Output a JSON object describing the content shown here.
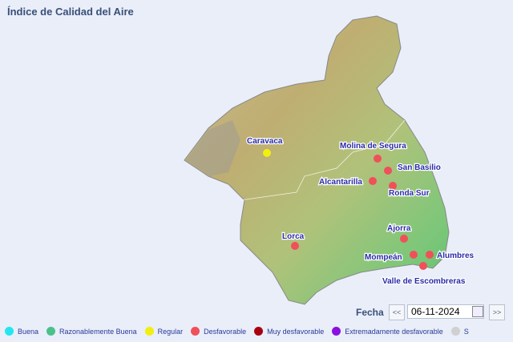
{
  "title": "Índice de Calidad del Aire",
  "date": {
    "label": "Fecha",
    "prev": "<<",
    "next": ">>",
    "value": "06-11-2024"
  },
  "stations": [
    {
      "name": "Caravaca",
      "level": "Regular"
    },
    {
      "name": "Molina de Segura",
      "level": "Desfavorable"
    },
    {
      "name": "San Basilio",
      "level": "Desfavorable"
    },
    {
      "name": "Alcantarilla",
      "level": "Desfavorable"
    },
    {
      "name": "Ronda Sur",
      "level": "Desfavorable"
    },
    {
      "name": "Ajorra",
      "level": "Desfavorable"
    },
    {
      "name": "Lorca",
      "level": "Desfavorable"
    },
    {
      "name": "Mompeán",
      "level": "Desfavorable"
    },
    {
      "name": "Alumbres",
      "level": "Desfavorable"
    },
    {
      "name": "Valle de Escombreras",
      "level": "Desfavorable"
    }
  ],
  "legend": [
    {
      "label": "Buena",
      "color": "#22e6f0"
    },
    {
      "label": "Razonablemente Buena",
      "color": "#4cc08a"
    },
    {
      "label": "Regular",
      "color": "#f2ef10"
    },
    {
      "label": "Desfavorable",
      "color": "#f0505a"
    },
    {
      "label": "Muy desfavorable",
      "color": "#a80010"
    },
    {
      "label": "Extremadamente desfavorable",
      "color": "#8a10e0"
    },
    {
      "label": "S",
      "color": "#d0d0d0"
    }
  ]
}
